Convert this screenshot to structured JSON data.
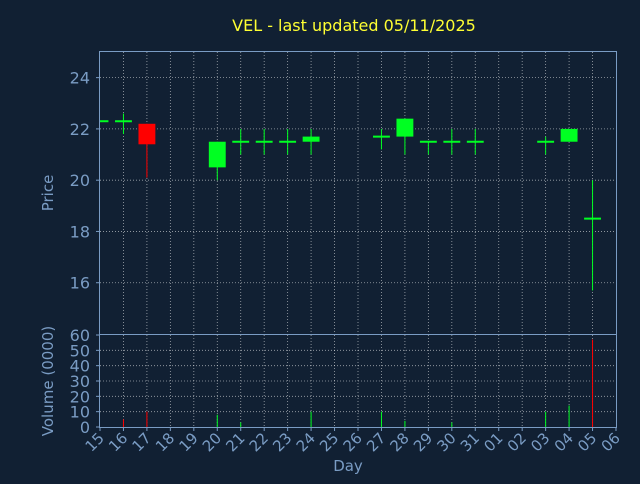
{
  "chart_data": {
    "type": "candlestick",
    "title": "VEL - last updated 05/11/2025",
    "xlabel": "Day",
    "colors": {
      "background": "#112033",
      "title": "#ffff33",
      "axis_text": "#7a9cc4",
      "grid": "#ffffff",
      "up": "#00ff22",
      "down": "#ff0000"
    },
    "x_categories": [
      "15",
      "16",
      "17",
      "18",
      "19",
      "20",
      "21",
      "22",
      "23",
      "24",
      "25",
      "26",
      "27",
      "28",
      "29",
      "30",
      "31",
      "01",
      "02",
      "03",
      "04",
      "05",
      "06"
    ],
    "price": {
      "ylabel": "Price",
      "ylim": [
        14.0,
        25.0
      ],
      "yticks": [
        16,
        18,
        20,
        22,
        24
      ],
      "candles": [
        {
          "x": "15",
          "open": 22.3,
          "high": 22.3,
          "low": 22.3,
          "close": 22.3
        },
        {
          "x": "16",
          "open": 22.3,
          "high": 22.6,
          "low": 21.8,
          "close": 22.3
        },
        {
          "x": "17",
          "open": 22.2,
          "high": 22.2,
          "low": 20.1,
          "close": 21.4
        },
        {
          "x": "20",
          "open": 20.5,
          "high": 21.5,
          "low": 20.0,
          "close": 21.5
        },
        {
          "x": "21",
          "open": 21.5,
          "high": 22.0,
          "low": 21.0,
          "close": 21.5
        },
        {
          "x": "22",
          "open": 21.5,
          "high": 22.0,
          "low": 21.0,
          "close": 21.5
        },
        {
          "x": "23",
          "open": 21.5,
          "high": 22.0,
          "low": 21.0,
          "close": 21.5
        },
        {
          "x": "24",
          "open": 21.5,
          "high": 22.0,
          "low": 21.0,
          "close": 21.7
        },
        {
          "x": "27",
          "open": 21.7,
          "high": 22.0,
          "low": 21.2,
          "close": 21.7
        },
        {
          "x": "28",
          "open": 21.7,
          "high": 22.4,
          "low": 21.0,
          "close": 22.4
        },
        {
          "x": "29",
          "open": 21.5,
          "high": 21.5,
          "low": 21.0,
          "close": 21.5
        },
        {
          "x": "30",
          "open": 21.5,
          "high": 22.0,
          "low": 21.0,
          "close": 21.5
        },
        {
          "x": "31",
          "open": 21.5,
          "high": 22.0,
          "low": 21.0,
          "close": 21.5
        },
        {
          "x": "03",
          "open": 21.5,
          "high": 21.7,
          "low": 21.0,
          "close": 21.5
        },
        {
          "x": "04",
          "open": 21.5,
          "high": 22.0,
          "low": 21.5,
          "close": 22.0
        },
        {
          "x": "05",
          "open": 18.5,
          "high": 20.0,
          "low": 15.7,
          "close": 18.5
        }
      ]
    },
    "volume": {
      "ylabel": "Volume (0000)",
      "ylim": [
        0,
        60
      ],
      "yticks": [
        0,
        10,
        20,
        30,
        40,
        50,
        60
      ],
      "bars": [
        {
          "x": "16",
          "value": 5,
          "direction": "down"
        },
        {
          "x": "17",
          "value": 10,
          "direction": "down"
        },
        {
          "x": "20",
          "value": 8,
          "direction": "up"
        },
        {
          "x": "21",
          "value": 3,
          "direction": "up"
        },
        {
          "x": "24",
          "value": 10,
          "direction": "up"
        },
        {
          "x": "27",
          "value": 10,
          "direction": "up"
        },
        {
          "x": "28",
          "value": 4,
          "direction": "up"
        },
        {
          "x": "30",
          "value": 3,
          "direction": "up"
        },
        {
          "x": "03",
          "value": 10,
          "direction": "up"
        },
        {
          "x": "04",
          "value": 14,
          "direction": "up"
        },
        {
          "x": "05",
          "value": 57,
          "direction": "down"
        }
      ]
    },
    "grid": true
  }
}
